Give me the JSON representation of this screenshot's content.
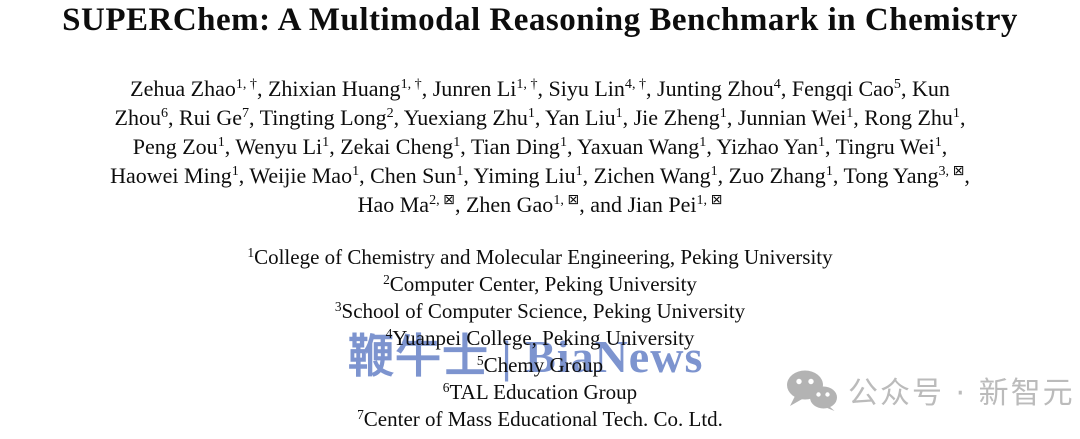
{
  "title": "SUPERChem: A Multimodal Reasoning Benchmark in Chemistry",
  "authors": {
    "lines": [
      [
        {
          "t": "Zehua Zhao",
          "s": "1, †"
        },
        {
          "t": ", Zhixian Huang",
          "s": "1, †"
        },
        {
          "t": ", Junren Li",
          "s": "1, †"
        },
        {
          "t": ", Siyu Lin",
          "s": "4, †"
        },
        {
          "t": ", Junting Zhou",
          "s": "4"
        },
        {
          "t": ", Fengqi Cao",
          "s": "5"
        },
        {
          "t": ", Kun"
        }
      ],
      [
        {
          "t": "Zhou",
          "s": "6"
        },
        {
          "t": ", Rui Ge",
          "s": "7"
        },
        {
          "t": ", Tingting Long",
          "s": "2"
        },
        {
          "t": ", Yuexiang Zhu",
          "s": "1"
        },
        {
          "t": ", Yan Liu",
          "s": "1"
        },
        {
          "t": ", Jie Zheng",
          "s": "1"
        },
        {
          "t": ", Junnian Wei",
          "s": "1"
        },
        {
          "t": ", Rong Zhu",
          "s": "1"
        },
        {
          "t": ","
        }
      ],
      [
        {
          "t": "Peng Zou",
          "s": "1"
        },
        {
          "t": ", Wenyu Li",
          "s": "1"
        },
        {
          "t": ", Zekai Cheng",
          "s": "1"
        },
        {
          "t": ", Tian Ding",
          "s": "1"
        },
        {
          "t": ", Yaxuan Wang",
          "s": "1"
        },
        {
          "t": ", Yizhao Yan",
          "s": "1"
        },
        {
          "t": ", Tingru Wei",
          "s": "1"
        },
        {
          "t": ","
        }
      ],
      [
        {
          "t": "Haowei Ming",
          "s": "1"
        },
        {
          "t": ", Weijie Mao",
          "s": "1"
        },
        {
          "t": ", Chen Sun",
          "s": "1"
        },
        {
          "t": ", Yiming Liu",
          "s": "1"
        },
        {
          "t": ", Zichen Wang",
          "s": "1"
        },
        {
          "t": ", Zuo Zhang",
          "s": "1"
        },
        {
          "t": ", Tong Yang",
          "s": "3, ⊠"
        },
        {
          "t": ","
        }
      ],
      [
        {
          "t": "Hao Ma",
          "s": "2, ⊠"
        },
        {
          "t": ", Zhen Gao",
          "s": "1, ⊠"
        },
        {
          "t": ", and Jian Pei",
          "s": "1, ⊠"
        }
      ]
    ]
  },
  "affiliations": [
    {
      "sup": "1",
      "text": "College of Chemistry and Molecular Engineering, Peking University"
    },
    {
      "sup": "2",
      "text": "Computer Center, Peking University"
    },
    {
      "sup": "3",
      "text": "School of Computer Science, Peking University"
    },
    {
      "sup": "4",
      "text": "Yuanpei College, Peking University"
    },
    {
      "sup": "5",
      "text": "Chemy Group"
    },
    {
      "sup": "6",
      "text": "TAL Education Group"
    },
    {
      "sup": "7",
      "text": "Center of Mass Educational Tech. Co. Ltd."
    }
  ],
  "watermarks": {
    "bianews": {
      "text": "鞭牛士 | BiaNews",
      "color": "#5876c1"
    },
    "xinzhiyuan": {
      "text": "公众号 · 新智元",
      "color": "#bbbbbb",
      "icon": "wechat-icon"
    }
  }
}
